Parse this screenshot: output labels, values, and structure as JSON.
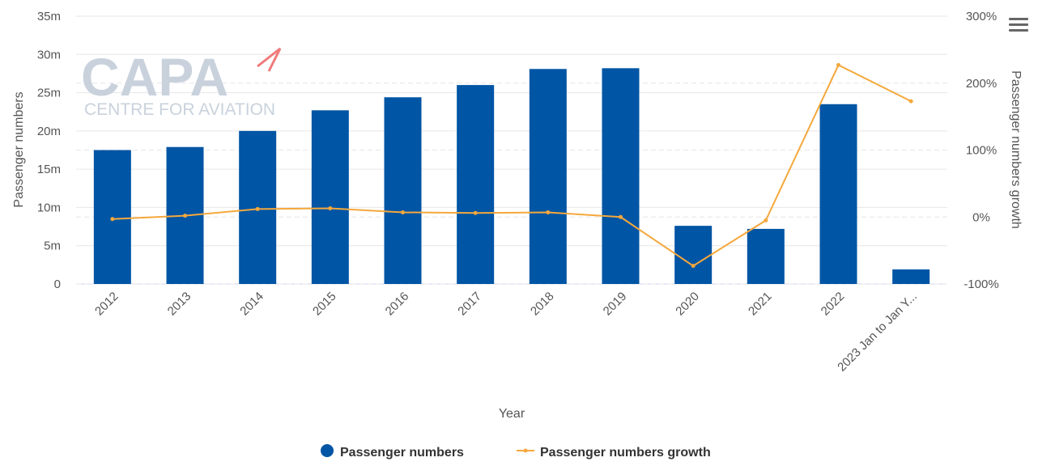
{
  "colors": {
    "bar": "#0055a5",
    "line": "#f5a83c",
    "grid": "#e6e6e6",
    "watermark": "#c9d2dc",
    "watermark_accent": "#f07a7a"
  },
  "watermark": {
    "brand": "CAPA",
    "sub": "CENTRE FOR AVIATION"
  },
  "menu_icon": "hamburger-menu-icon",
  "chart_data": {
    "type": "bar",
    "categories": [
      "2012",
      "2013",
      "2014",
      "2015",
      "2016",
      "2017",
      "2018",
      "2019",
      "2020",
      "2021",
      "2022",
      "2023 Jan to Jan Y..."
    ],
    "xlabel": "Year",
    "ylabel": "Passenger numbers",
    "y2label": "Passenger numbers growth",
    "ylim": [
      0,
      35
    ],
    "y_ticks": [
      "0",
      "5m",
      "10m",
      "15m",
      "20m",
      "25m",
      "30m",
      "35m"
    ],
    "y2lim": [
      -100,
      300
    ],
    "y2_ticks": [
      "-100%",
      "0%",
      "100%",
      "200%",
      "300%"
    ],
    "grid": true,
    "legend_position": "bottom-center",
    "series": [
      {
        "name": "Passenger numbers",
        "type": "bar",
        "axis": "left",
        "unit": "m",
        "values": [
          17.5,
          17.9,
          20.0,
          22.7,
          24.4,
          26.0,
          28.1,
          28.2,
          7.6,
          7.2,
          23.5,
          1.9
        ]
      },
      {
        "name": "Passenger numbers growth",
        "type": "line",
        "axis": "right",
        "unit": "%",
        "values": [
          -3,
          2,
          12,
          13,
          7,
          6,
          7,
          0,
          -73,
          -5,
          227,
          173
        ]
      }
    ]
  }
}
